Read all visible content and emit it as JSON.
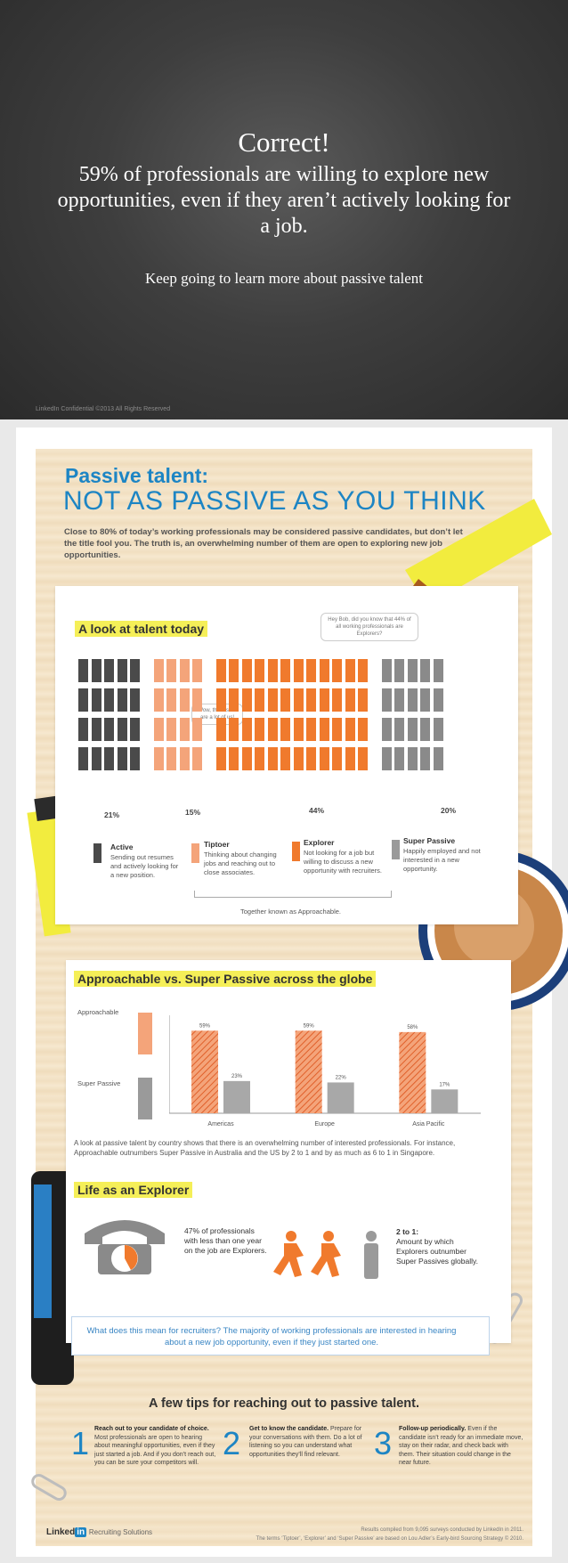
{
  "slide": {
    "headline": "Correct!",
    "subline": "59% of professionals are willing to explore new opportunities, even if they aren’t actively looking for a job.",
    "keep_going": "Keep going to learn more about passive talent",
    "copyright": "LinkedIn Confidential ©2013 All Rights Reserved"
  },
  "infographic": {
    "title_1": "Passive talent:",
    "title_2": "NOT AS PASSIVE AS YOU THINK",
    "intro": "Close to 80% of today’s working professionals may be considered passive candidates, but don’t let the title fool you. The truth is, an overwhelming number of them are open to exploring new job opportunities.",
    "talent_heading": "A look at talent today",
    "bubble_top": "Hey Bob, did you know that 44% of all working professionals are Explorers?",
    "bubble_mid": "Wow, there sure are a lot of us!",
    "percents": [
      "21%",
      "15%",
      "44%",
      "20%"
    ],
    "categories": [
      {
        "name": "Active",
        "desc": "Sending out resumes and actively looking for a new position."
      },
      {
        "name": "Tiptoer",
        "desc": "Thinking about changing jobs and reaching out to close associates."
      },
      {
        "name": "Explorer",
        "desc": "Not looking for a job but willing to discuss a new opportunity with recruiters."
      },
      {
        "name": "Super Passive",
        "desc": "Happily employed and not interested in a new opportunity."
      }
    ],
    "together": "Together known as Approachable.",
    "globe_heading": "Approachable vs. Super Passive across the globe",
    "legend_approachable": "Approachable",
    "legend_super": "Super Passive",
    "globe_text": "A look at passive talent by country shows that there is an overwhelming number of interested professionals. For instance, Approachable outnumbers Super Passive in Australia and the US by 2 to 1 and by as much as 6 to 1 in Singapore.",
    "explorer_heading": "Life as an Explorer",
    "explorer_stat": "47% of professionals with less than one year on the job are Explorers.",
    "ratio_title": "2 to 1:",
    "ratio_text": "Amount by which Explorers outnumber Super Passives globally.",
    "question": "What does this mean for recruiters? The majority of working professionals are interested in hearing about a new job opportunity, even if they just started one.",
    "tips_title": "A few tips for reaching out to passive talent.",
    "tips": [
      {
        "num": "1",
        "bold": "Reach out to your candidate of choice.",
        "text": "Most professionals are open to hearing about meaningful opportunities, even if they just started a job. And if you don’t reach out, you can be sure your competitors will."
      },
      {
        "num": "2",
        "bold": "Get to know the candidate.",
        "text": "Prepare for your conversations with them. Do a lot of listening so you can understand what opportunities they’ll find relevant."
      },
      {
        "num": "3",
        "bold": "Follow-up periodically.",
        "text": "Even if the candidate isn’t ready for an immediate move, stay on their radar, and check back with them. Their situation could change in the near future."
      }
    ],
    "logo_word": "Linked",
    "logo_in": "in",
    "logo_suffix": "Recruiting Solutions",
    "source_1": "Results compiled from 9,095 surveys conducted by LinkedIn in 2011.",
    "source_2": "The terms ‘Tiptoer’, ‘Explorer’ and ‘Super Passive’ are based on Lou Adler’s Early-bird Sourcing Strategy © 2010.",
    "colors": {
      "blue": "#1d85c4",
      "orange": "#f07a2d",
      "light_orange": "#f4a47a",
      "gray": "#8a8a8a",
      "dark_gray": "#4a4a4a",
      "highlight": "#f5ef58"
    }
  },
  "chart_data": {
    "type": "bar",
    "categories": [
      "Americas",
      "Europe",
      "Asia Pacific"
    ],
    "series": [
      {
        "name": "Approachable",
        "values": [
          59,
          59,
          58
        ]
      },
      {
        "name": "Super Passive",
        "values": [
          23,
          22,
          17
        ]
      }
    ],
    "labels": [
      [
        "59%",
        "23%"
      ],
      [
        "59%",
        "22%"
      ],
      [
        "58%",
        "17%"
      ]
    ],
    "title": "Approachable vs. Super Passive across the globe",
    "xlabel": "",
    "ylabel": "",
    "ylim": [
      0,
      70
    ]
  }
}
